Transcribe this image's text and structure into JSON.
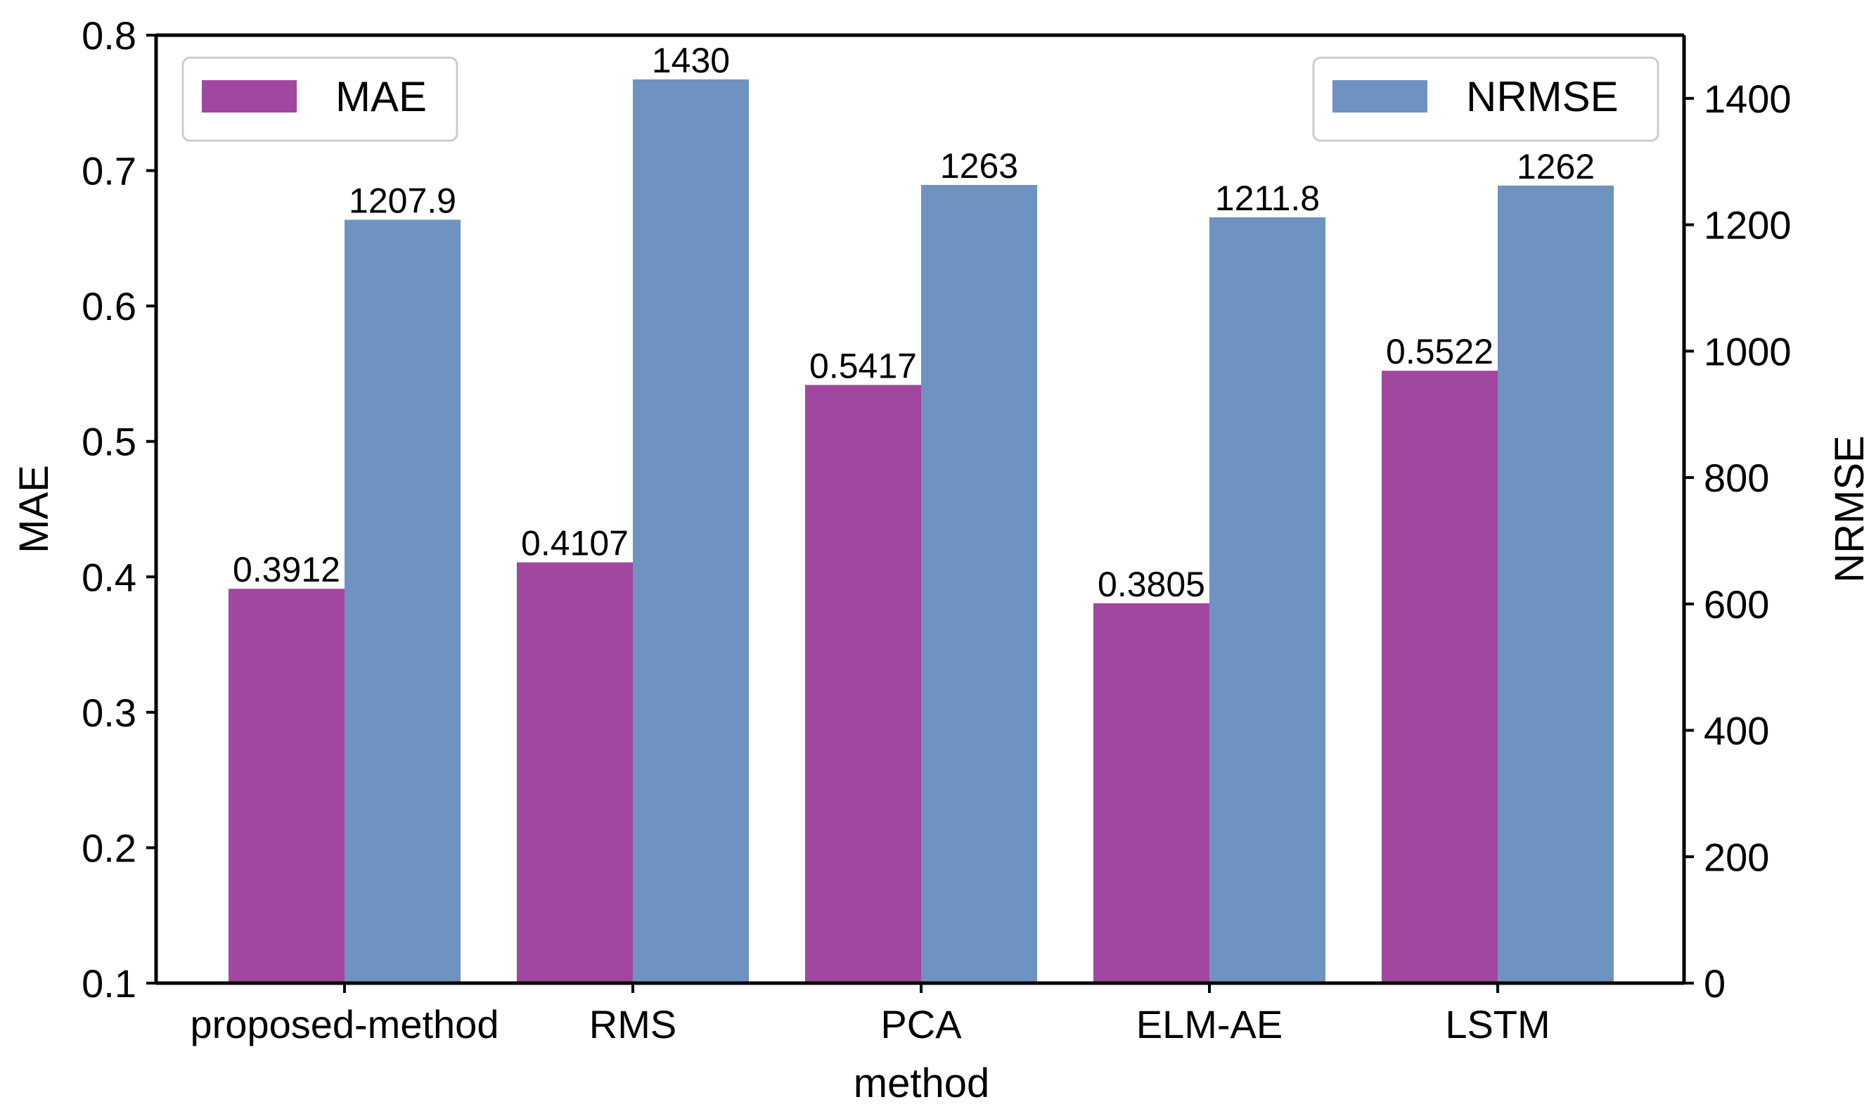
{
  "chart_data": {
    "type": "bar",
    "categories": [
      "proposed-method",
      "RMS",
      "PCA",
      "ELM-AE",
      "LSTM"
    ],
    "series": [
      {
        "name": "MAE",
        "axis": "left",
        "color": "#A2479F",
        "values": [
          0.3912,
          0.4107,
          0.5417,
          0.3805,
          0.5522
        ],
        "labels": [
          "0.3912",
          "0.4107",
          "0.5417",
          "0.3805",
          "0.5522"
        ]
      },
      {
        "name": "NRMSE",
        "axis": "right",
        "color": "#6E93C0",
        "values": [
          1207.9,
          1430,
          1263,
          1211.8,
          1262
        ],
        "labels": [
          "1207.9",
          "1430",
          "1263",
          "1211.8",
          "1262"
        ]
      }
    ],
    "xlabel": "method",
    "ylabel_left": "MAE",
    "ylabel_right": "NRMSE",
    "ylim_left": [
      0.1,
      0.8
    ],
    "ylim_right": [
      0,
      1500
    ],
    "yticks_left": [
      "0.1",
      "0.2",
      "0.3",
      "0.4",
      "0.5",
      "0.6",
      "0.7",
      "0.8"
    ],
    "yticks_right": [
      "0",
      "200",
      "400",
      "600",
      "800",
      "1000",
      "1200",
      "1400"
    ],
    "legend_left": "top-left",
    "legend_right": "top-right",
    "grid": false
  }
}
